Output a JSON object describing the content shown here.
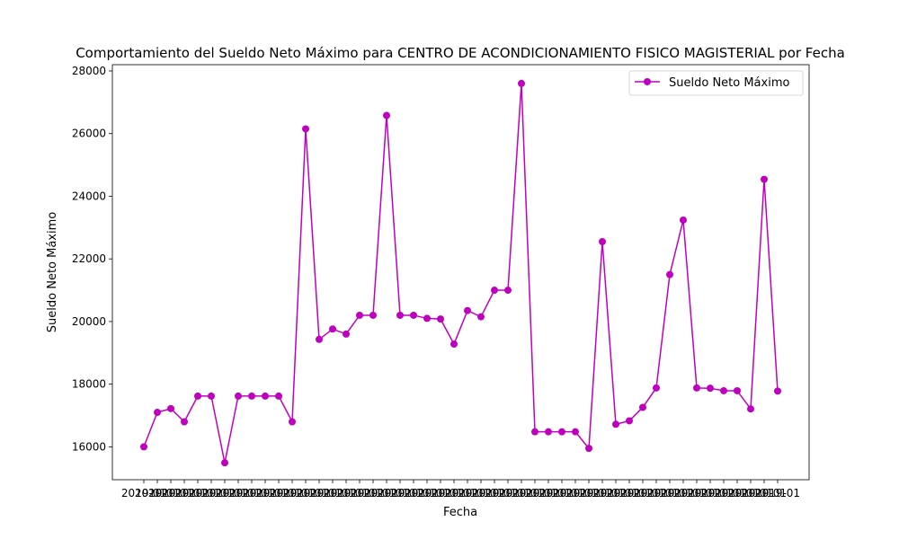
{
  "chart_data": {
    "type": "line",
    "title": "Comportamiento del Sueldo Neto Máximo para CENTRO DE ACONDICIONAMIENTO FISICO MAGISTERIAL por Fecha",
    "xlabel": "Fecha",
    "ylabel": "Sueldo Neto Máximo",
    "ylim": [
      14950,
      28200
    ],
    "y_ticks": [
      16000,
      18000,
      20000,
      22000,
      24000,
      26000,
      28000
    ],
    "x_tick_label_text": "2019-01",
    "grid": false,
    "legend_placement": "top-right",
    "colors": {
      "series": "#bf00bf",
      "axis": "#000000",
      "background": "#ffffff"
    },
    "series": [
      {
        "name": "Sueldo Neto Máximo",
        "values": [
          16000,
          17100,
          17220,
          16800,
          17620,
          17620,
          15490,
          17620,
          17620,
          17620,
          17620,
          16800,
          26150,
          19430,
          19760,
          19600,
          20200,
          20200,
          26580,
          20200,
          20200,
          20100,
          20080,
          19280,
          20350,
          20150,
          21000,
          21000,
          27600,
          16480,
          16480,
          16480,
          16480,
          15950,
          22550,
          16720,
          16830,
          17260,
          17880,
          21500,
          23240,
          17880,
          17870,
          17790,
          17790,
          17210,
          24540,
          17780
        ]
      }
    ]
  }
}
